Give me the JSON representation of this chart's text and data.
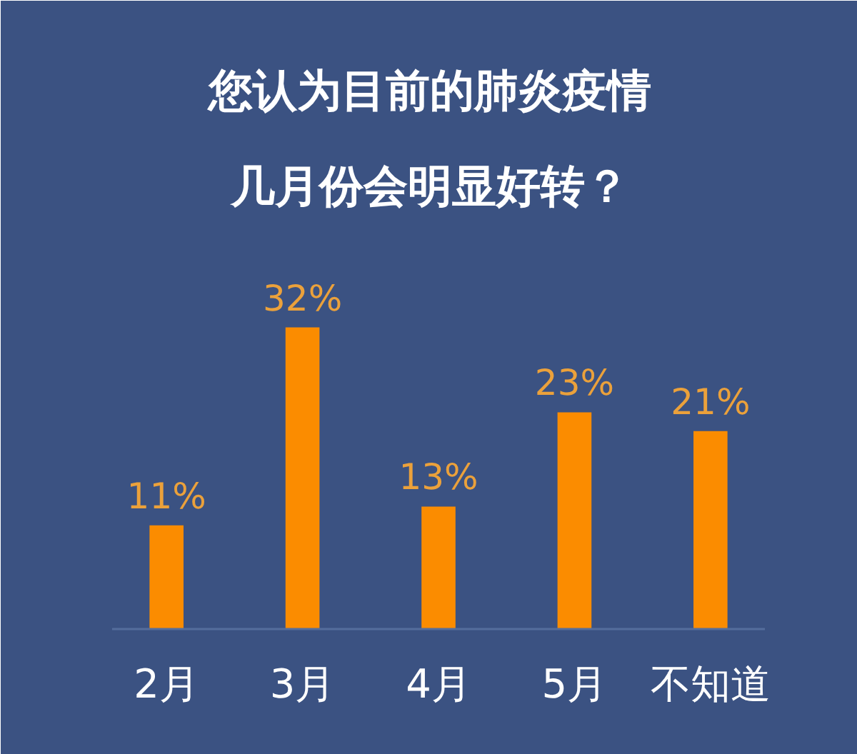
{
  "chart_data": {
    "type": "bar",
    "title": "您认为目前的肺炎疫情几月份会明显好转？",
    "categories": [
      "2月",
      "3月",
      "4月",
      "5月",
      "不知道"
    ],
    "values": [
      11,
      32,
      13,
      23,
      21
    ],
    "color": "#fb8c00",
    "value_labels": [
      "11%",
      "32%",
      "13%",
      "23%",
      "21%"
    ]
  }
}
